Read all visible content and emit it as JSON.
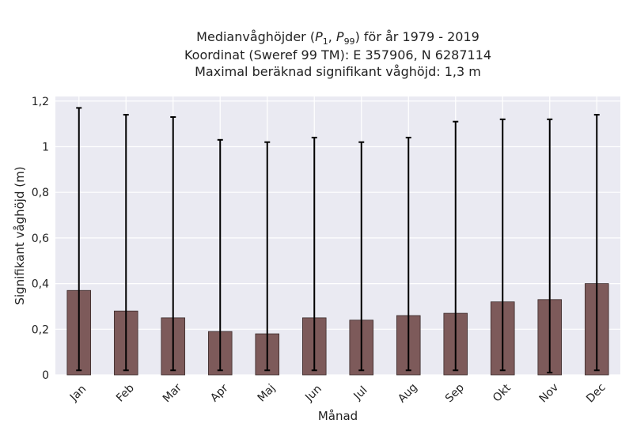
{
  "chart_data": {
    "type": "bar",
    "title_lines": [
      "Medianvåghöjder (P1, P99) för år 1979 - 2019",
      "Koordinat (Sweref 99 TM): E 357906, N 6287114",
      "Maximal beräknad signifikant våghöjd: 1,3 m"
    ],
    "xlabel": "Månad",
    "ylabel": "Signifikant våghöjd (m)",
    "ylim": [
      0,
      1.22
    ],
    "yticks": [
      0,
      0.2,
      0.4,
      0.6,
      0.8,
      1,
      1.2
    ],
    "ytick_labels": [
      "0",
      "0,2",
      "0,4",
      "0,6",
      "0,8",
      "1",
      "1,2"
    ],
    "categories": [
      "Jan",
      "Feb",
      "Mar",
      "Apr",
      "Maj",
      "Jun",
      "Jul",
      "Aug",
      "Sep",
      "Okt",
      "Nov",
      "Dec"
    ],
    "values": [
      0.37,
      0.28,
      0.25,
      0.19,
      0.18,
      0.25,
      0.24,
      0.26,
      0.27,
      0.32,
      0.33,
      0.4
    ],
    "p1": [
      0.02,
      0.02,
      0.02,
      0.02,
      0.02,
      0.02,
      0.02,
      0.02,
      0.02,
      0.02,
      0.01,
      0.02
    ],
    "p99": [
      1.17,
      1.14,
      1.13,
      1.03,
      1.02,
      1.04,
      1.02,
      1.04,
      1.11,
      1.12,
      1.12,
      1.14
    ],
    "grid": true,
    "colors": {
      "bar": "#7d5a5a",
      "bar_edge": "#3a2a2a",
      "error": "#000000",
      "plot_bg": "#eaeaf2",
      "grid": "#ffffff"
    }
  }
}
